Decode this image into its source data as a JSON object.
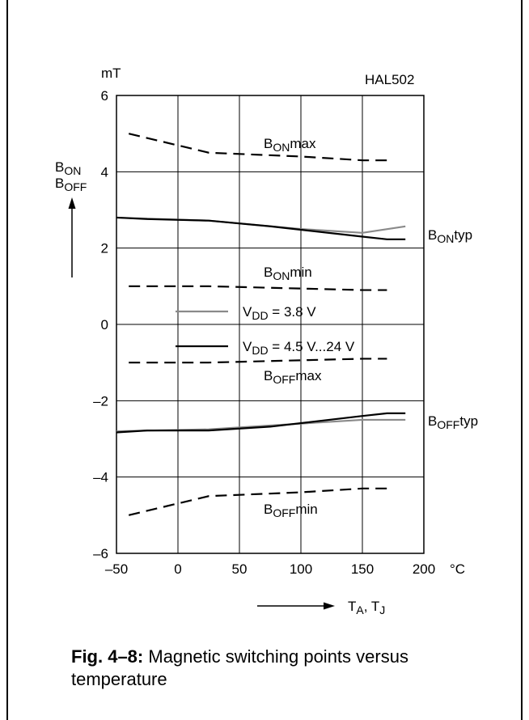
{
  "chart_data": {
    "type": "line",
    "device": "HAL502",
    "xlabel": "T",
    "xlabel_sub": "A",
    "xlabel_sep": ", T",
    "xlabel_sub2": "J",
    "x_unit": "°C",
    "ylabel": "B",
    "ylabel_sub": "ON",
    "ylabel2": "B",
    "ylabel2_sub": "OFF",
    "y_unit": "mT",
    "xlim": [
      -50,
      200
    ],
    "ylim": [
      -6,
      6
    ],
    "x_ticks": [
      -50,
      0,
      50,
      100,
      150,
      200
    ],
    "x_tick_labels": [
      "–50",
      "0",
      "50",
      "100",
      "150",
      "200"
    ],
    "y_ticks": [
      -6,
      -4,
      -2,
      0,
      2,
      4,
      6
    ],
    "y_tick_labels": [
      "–6",
      "–4",
      "–2",
      "0",
      "2",
      "4",
      "6"
    ],
    "grid": true,
    "legend": [
      {
        "name": "V",
        "sub": "DD",
        "rest": " = 3.8 V",
        "color": "#8a8a8a",
        "dash": "solid"
      },
      {
        "name": "V",
        "sub": "DD",
        "rest": " = 4.5 V...24 V",
        "color": "#000000",
        "dash": "solid"
      }
    ],
    "series": [
      {
        "label_main": "B",
        "label_sub": "ON",
        "label_suffix": "max",
        "color": "#000000",
        "dash": "dashed",
        "x": [
          -40,
          25,
          100,
          150,
          170
        ],
        "y": [
          5.0,
          4.5,
          4.4,
          4.3,
          4.3
        ]
      },
      {
        "label_main": "B",
        "label_sub": "ON",
        "label_suffix": "typ",
        "color": "#8a8a8a",
        "dash": "solid",
        "x": [
          -50,
          25,
          100,
          150,
          185
        ],
        "y": [
          2.8,
          2.72,
          2.5,
          2.4,
          2.57
        ]
      },
      {
        "label_main": "B",
        "label_sub": "ON",
        "label_suffix": "typ",
        "color": "#000000",
        "dash": "solid",
        "hide_label": true,
        "x": [
          -50,
          -25,
          25,
          75,
          150,
          170,
          185
        ],
        "y": [
          2.8,
          2.76,
          2.72,
          2.57,
          2.3,
          2.23,
          2.23
        ]
      },
      {
        "label_main": "B",
        "label_sub": "ON",
        "label_suffix": "min",
        "color": "#000000",
        "dash": "dashed",
        "x": [
          -40,
          25,
          150,
          170
        ],
        "y": [
          1.0,
          1.0,
          0.9,
          0.9
        ]
      },
      {
        "label_main": "B",
        "label_sub": "OFF",
        "label_suffix": "max",
        "color": "#000000",
        "dash": "dashed",
        "x": [
          -40,
          25,
          150,
          170
        ],
        "y": [
          -1.0,
          -1.0,
          -0.9,
          -0.9
        ]
      },
      {
        "label_main": "B",
        "label_sub": "OFF",
        "label_suffix": "typ",
        "color": "#8a8a8a",
        "dash": "solid",
        "x": [
          -50,
          25,
          75,
          150,
          185
        ],
        "y": [
          -2.8,
          -2.75,
          -2.65,
          -2.5,
          -2.5
        ]
      },
      {
        "label_main": "B",
        "label_sub": "OFF",
        "label_suffix": "typ",
        "color": "#000000",
        "dash": "solid",
        "hide_label": true,
        "x": [
          -50,
          -25,
          25,
          75,
          150,
          170,
          185
        ],
        "y": [
          -2.83,
          -2.78,
          -2.78,
          -2.68,
          -2.4,
          -2.33,
          -2.33
        ]
      },
      {
        "label_main": "B",
        "label_sub": "OFF",
        "label_suffix": "min",
        "color": "#000000",
        "dash": "dashed",
        "x": [
          -40,
          25,
          100,
          150,
          170
        ],
        "y": [
          -5.0,
          -4.5,
          -4.4,
          -4.3,
          -4.3
        ]
      }
    ]
  },
  "caption": {
    "bold": "Fig. 4–8:",
    "text": " Magnetic switching points versus temperature"
  }
}
